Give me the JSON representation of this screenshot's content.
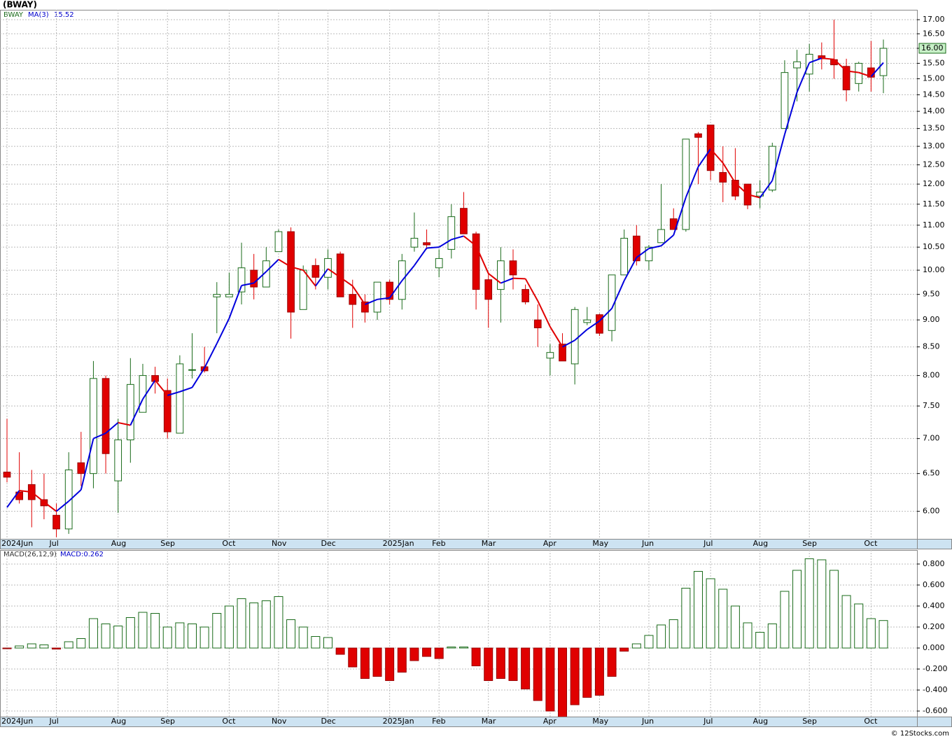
{
  "chart_data": [
    {
      "type": "candlestick",
      "title": "(BWAY)",
      "name": "BWAY",
      "log": true,
      "grid": true,
      "categories": [
        "2024Jun",
        null,
        null,
        null,
        "Jul",
        null,
        null,
        null,
        null,
        "Aug",
        null,
        null,
        null,
        "Sep",
        null,
        null,
        null,
        null,
        "Oct",
        null,
        null,
        null,
        "Nov",
        null,
        null,
        null,
        "Dec",
        null,
        null,
        null,
        null,
        "2025Jan",
        null,
        null,
        null,
        "Feb",
        null,
        null,
        null,
        "Mar",
        null,
        null,
        null,
        null,
        "Apr",
        null,
        null,
        null,
        "May",
        null,
        null,
        null,
        "Jun",
        null,
        null,
        null,
        null,
        "Jul",
        null,
        null,
        null,
        "Aug",
        null,
        null,
        null,
        "Sep",
        null,
        null,
        null,
        null,
        "Oct",
        null
      ],
      "open": [
        6.52,
        6.25,
        6.35,
        6.15,
        5.95,
        5.78,
        6.65,
        6.5,
        7.95,
        6.4,
        6.98,
        7.4,
        8.0,
        7.75,
        7.08,
        8.1,
        8.15,
        9.45,
        9.45,
        9.55,
        10.0,
        9.65,
        10.4,
        10.85,
        9.2,
        10.1,
        9.85,
        10.35,
        9.5,
        9.35,
        9.15,
        9.75,
        9.4,
        10.5,
        10.6,
        10.05,
        10.45,
        11.4,
        10.8,
        9.8,
        9.6,
        10.2,
        9.6,
        9.0,
        8.3,
        8.55,
        8.2,
        8.95,
        9.1,
        8.8,
        9.9,
        10.75,
        10.2,
        10.6,
        11.15,
        10.9,
        13.35,
        13.6,
        12.3,
        12.1,
        12.0,
        11.7,
        11.85,
        13.5,
        15.35,
        15.15,
        15.75,
        15.62,
        15.4,
        14.85,
        15.35,
        15.1
      ],
      "high": [
        7.3,
        6.8,
        6.55,
        6.5,
        6.1,
        6.8,
        7.1,
        8.25,
        8.0,
        7.3,
        8.3,
        8.2,
        8.15,
        7.95,
        8.35,
        8.75,
        8.5,
        9.75,
        9.95,
        10.6,
        10.35,
        10.5,
        10.9,
        10.95,
        10.1,
        10.25,
        10.45,
        10.4,
        9.8,
        9.5,
        9.75,
        9.8,
        10.35,
        11.3,
        10.9,
        10.45,
        11.5,
        11.8,
        10.85,
        9.95,
        10.5,
        10.45,
        9.7,
        9.3,
        8.55,
        8.75,
        9.25,
        9.25,
        9.12,
        9.9,
        10.9,
        11.0,
        10.55,
        12.0,
        11.4,
        13.2,
        13.4,
        13.6,
        13.0,
        12.95,
        12.0,
        12.1,
        13.1,
        15.6,
        15.95,
        16.15,
        16.2,
        17.0,
        15.65,
        15.55,
        16.25,
        16.3
      ],
      "low": [
        6.38,
        6.1,
        5.8,
        5.9,
        5.68,
        5.72,
        6.33,
        6.3,
        6.5,
        5.98,
        6.65,
        7.4,
        7.7,
        7.0,
        7.08,
        7.95,
        8.05,
        8.75,
        9.45,
        9.3,
        9.4,
        9.65,
        10.4,
        8.65,
        9.2,
        9.6,
        9.6,
        9.45,
        8.85,
        8.95,
        9.0,
        9.3,
        9.2,
        10.4,
        10.45,
        9.85,
        10.25,
        10.8,
        9.2,
        8.85,
        8.95,
        9.6,
        9.3,
        8.5,
        8.0,
        8.25,
        7.85,
        8.9,
        8.7,
        8.6,
        9.9,
        10.1,
        10.0,
        10.6,
        10.9,
        10.85,
        12.0,
        12.1,
        11.55,
        11.6,
        11.38,
        11.4,
        11.8,
        13.5,
        14.3,
        14.6,
        15.3,
        15.0,
        14.3,
        14.6,
        14.6,
        14.55
      ],
      "close": [
        6.45,
        6.15,
        6.15,
        6.07,
        5.78,
        6.55,
        6.5,
        7.95,
        6.78,
        6.98,
        7.85,
        8.0,
        7.9,
        7.1,
        8.2,
        8.1,
        8.08,
        9.5,
        9.5,
        10.05,
        9.65,
        10.2,
        10.85,
        9.15,
        10.0,
        9.85,
        10.25,
        9.45,
        9.3,
        9.15,
        9.75,
        9.4,
        10.2,
        10.7,
        10.55,
        10.25,
        11.2,
        10.8,
        9.6,
        9.4,
        10.2,
        9.9,
        9.35,
        8.85,
        8.4,
        8.25,
        9.2,
        9.0,
        8.75,
        9.9,
        10.7,
        10.2,
        10.5,
        10.9,
        10.9,
        13.2,
        13.25,
        12.35,
        12.05,
        11.7,
        11.48,
        11.8,
        13.0,
        15.2,
        15.55,
        15.8,
        15.65,
        15.45,
        14.65,
        15.5,
        15.05,
        16.0
      ],
      "last_label": "16.00",
      "up_color": "#1a6b1a",
      "down_color": "#e00000",
      "ma": {
        "name": "MA(3)",
        "value_label": "15.52",
        "rise_color": "#0000dd",
        "fall_color": "#e00000",
        "values": [
          6.05,
          6.27,
          6.25,
          6.12,
          6.0,
          6.13,
          6.28,
          7.0,
          7.08,
          7.24,
          7.2,
          7.61,
          7.92,
          7.67,
          7.73,
          7.8,
          8.13,
          8.56,
          9.03,
          9.68,
          9.73,
          9.97,
          10.23,
          10.07,
          10.0,
          9.67,
          10.03,
          9.85,
          9.67,
          9.3,
          9.4,
          9.43,
          9.78,
          10.1,
          10.48,
          10.5,
          10.67,
          10.75,
          10.53,
          9.93,
          9.73,
          9.83,
          9.82,
          9.37,
          8.87,
          8.5,
          8.62,
          8.82,
          8.98,
          9.22,
          9.78,
          10.27,
          10.47,
          10.53,
          10.77,
          11.67,
          12.45,
          12.93,
          12.55,
          12.03,
          11.74,
          11.66,
          12.09,
          13.33,
          14.58,
          15.52,
          15.67,
          15.63,
          15.25,
          15.2,
          15.07,
          15.52
        ]
      },
      "ylim": [
        5.66,
        17.36
      ],
      "yticks": [
        {
          "value": 6,
          "label": "6.00"
        },
        {
          "value": 6.5,
          "label": "6.50"
        },
        {
          "value": 7,
          "label": "7.00"
        },
        {
          "value": 7.5,
          "label": "7.50"
        },
        {
          "value": 8,
          "label": "8.00"
        },
        {
          "value": 8.5,
          "label": "8.50"
        },
        {
          "value": 9,
          "label": "9.00"
        },
        {
          "value": 9.5,
          "label": "9.50"
        },
        {
          "value": 10,
          "label": "10.00"
        },
        {
          "value": 10.5,
          "label": "10.50"
        },
        {
          "value": 11,
          "label": "11.00"
        },
        {
          "value": 11.5,
          "label": "11.50"
        },
        {
          "value": 12,
          "label": "12.00"
        },
        {
          "value": 12.5,
          "label": "12.50"
        },
        {
          "value": 13,
          "label": "13.00"
        },
        {
          "value": 13.5,
          "label": "13.50"
        },
        {
          "value": 14,
          "label": "14.00"
        },
        {
          "value": 14.5,
          "label": "14.50"
        },
        {
          "value": 15,
          "label": "15.00"
        },
        {
          "value": 15.5,
          "label": "15.50"
        },
        {
          "value": 16,
          "label": "16.00"
        },
        {
          "value": 16.5,
          "label": "16.50"
        },
        {
          "value": 17,
          "label": "17.00"
        }
      ]
    },
    {
      "type": "bar",
      "name": "MACD(26,12,9)",
      "value_label": "MACD:0.262",
      "grid": true,
      "pos_color": "#1a6b1a",
      "neg_color": "#e00000",
      "values": [
        -0.005,
        0.02,
        0.04,
        0.03,
        -0.01,
        0.06,
        0.09,
        0.28,
        0.23,
        0.21,
        0.29,
        0.34,
        0.33,
        0.2,
        0.24,
        0.23,
        0.2,
        0.33,
        0.4,
        0.47,
        0.43,
        0.45,
        0.49,
        0.27,
        0.2,
        0.11,
        0.1,
        -0.06,
        -0.18,
        -0.29,
        -0.27,
        -0.31,
        -0.23,
        -0.12,
        -0.08,
        -0.1,
        0.01,
        0.01,
        -0.17,
        -0.31,
        -0.29,
        -0.31,
        -0.39,
        -0.5,
        -0.6,
        -0.67,
        -0.54,
        -0.47,
        -0.45,
        -0.27,
        -0.03,
        0.04,
        0.12,
        0.22,
        0.27,
        0.57,
        0.73,
        0.66,
        0.56,
        0.4,
        0.24,
        0.15,
        0.23,
        0.54,
        0.74,
        0.85,
        0.84,
        0.74,
        0.5,
        0.42,
        0.28,
        0.262
      ],
      "ylim": [
        -0.653,
        0.933
      ],
      "yticks": [
        {
          "value": -0.6,
          "label": "-0.600"
        },
        {
          "value": -0.4,
          "label": "-0.400"
        },
        {
          "value": -0.2,
          "label": "-0.200"
        },
        {
          "value": 0,
          "label": "0.000"
        },
        {
          "value": 0.2,
          "label": "0.200"
        },
        {
          "value": 0.4,
          "label": "0.400"
        },
        {
          "value": 0.6,
          "label": "0.600"
        },
        {
          "value": 0.8,
          "label": "0.800"
        }
      ]
    }
  ],
  "footer": "© 12Stocks.com"
}
